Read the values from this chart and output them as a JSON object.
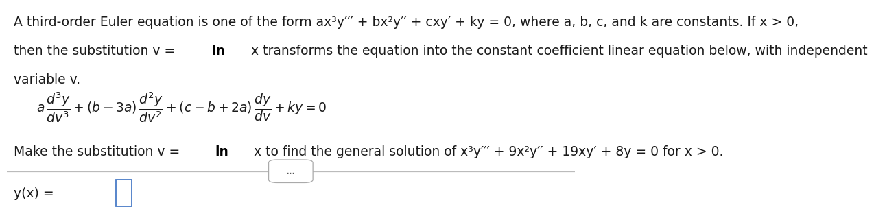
{
  "bg_color": "#ffffff",
  "text_color": "#1a1a1a",
  "bold_color": "#000000",
  "line_color": "#bbbbbb",
  "box_color": "#4a7cc7",
  "dots_color": "#555555",
  "dots_border": "#aaaaaa",
  "line1": "A third-order Euler equation is one of the form ax³y′′′ + bx²y′′ + cxy′ + ky = 0, where a, b, c, and k are constants. If x > 0,",
  "line2_pre": "then the substitution v = ",
  "line2_bold": "ln",
  "line2_post": " x transforms the equation into the constant coefficient linear equation below, with independent",
  "line3": "variable v.",
  "subst_pre": "Make the substitution v = ",
  "subst_bold": "ln",
  "subst_post": " x to find the general solution of x³y′′′ + 9x²y′′ + 19xy′ + 8y = 0 for x > 0.",
  "font_size": 13.5,
  "font_size_eq": 13.5
}
